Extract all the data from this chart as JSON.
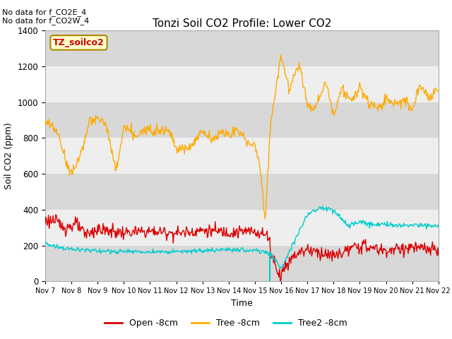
{
  "title": "Tonzi Soil CO2 Profile: Lower CO2",
  "ylabel": "Soil CO2 (ppm)",
  "xlabel": "Time",
  "annotation1": "No data for f_CO2E_4",
  "annotation2": "No data for f_CO2W_4",
  "legend_box_label": "TZ_soilco2",
  "ylim": [
    0,
    1400
  ],
  "background_color": "#ffffff",
  "plot_bg_color": "#e8e8e8",
  "band_color": "#d8d8d8",
  "grid_color": "#ffffff",
  "open_color": "#dd0000",
  "tree_color": "#ffaa00",
  "tree2_color": "#00cccc",
  "vertical_line_color": "#00cccc",
  "vertical_line_x": 8.57,
  "x_tick_labels": [
    "Nov 7",
    "Nov 8",
    "Nov 9",
    "Nov 10",
    "Nov 11",
    "Nov 12",
    "Nov 13",
    "Nov 14",
    "Nov 15",
    "Nov 16",
    "Nov 17",
    "Nov 18",
    "Nov 19",
    "Nov 20",
    "Nov 21",
    "Nov 22"
  ],
  "num_points": 600,
  "figwidth": 6.4,
  "figheight": 4.8
}
